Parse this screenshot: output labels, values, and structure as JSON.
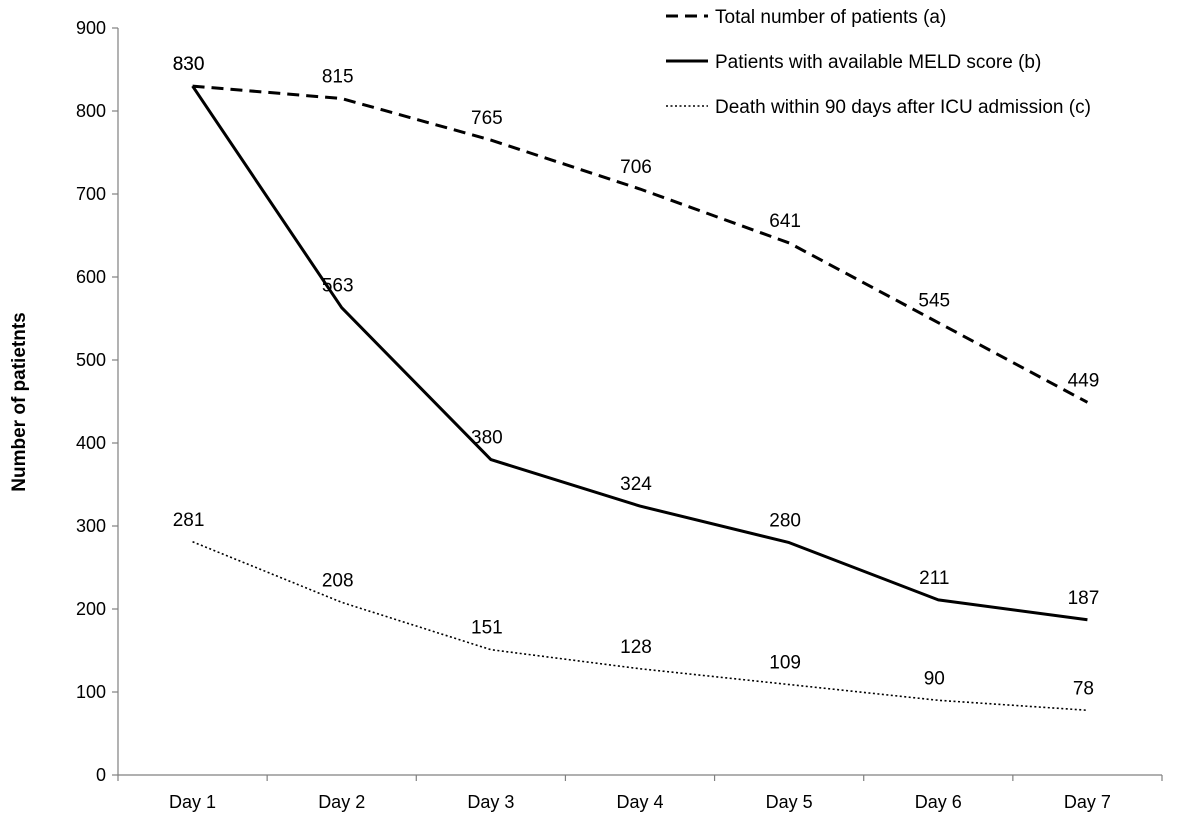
{
  "chart_data": {
    "type": "line",
    "title": "",
    "xlabel": "",
    "ylabel": "Number of patietnts",
    "ylim": [
      0,
      900
    ],
    "yticks": [
      0,
      100,
      200,
      300,
      400,
      500,
      600,
      700,
      800,
      900
    ],
    "grid": false,
    "legend_position": "top-right",
    "categories": [
      "Day 1",
      "Day 2",
      "Day 3",
      "Day 4",
      "Day 5",
      "Day 6",
      "Day 7"
    ],
    "series": [
      {
        "name": "Total number of patients (a)",
        "style": "dashed",
        "color": "#000000",
        "values": [
          830,
          815,
          765,
          706,
          641,
          545,
          449
        ]
      },
      {
        "name": "Patients with available MELD score (b)",
        "style": "solid",
        "color": "#000000",
        "values": [
          830,
          563,
          380,
          324,
          280,
          211,
          187
        ]
      },
      {
        "name": "Death within 90 days after ICU admission (c)",
        "style": "dotted",
        "color": "#000000",
        "values": [
          281,
          208,
          151,
          128,
          109,
          90,
          78
        ]
      }
    ]
  }
}
